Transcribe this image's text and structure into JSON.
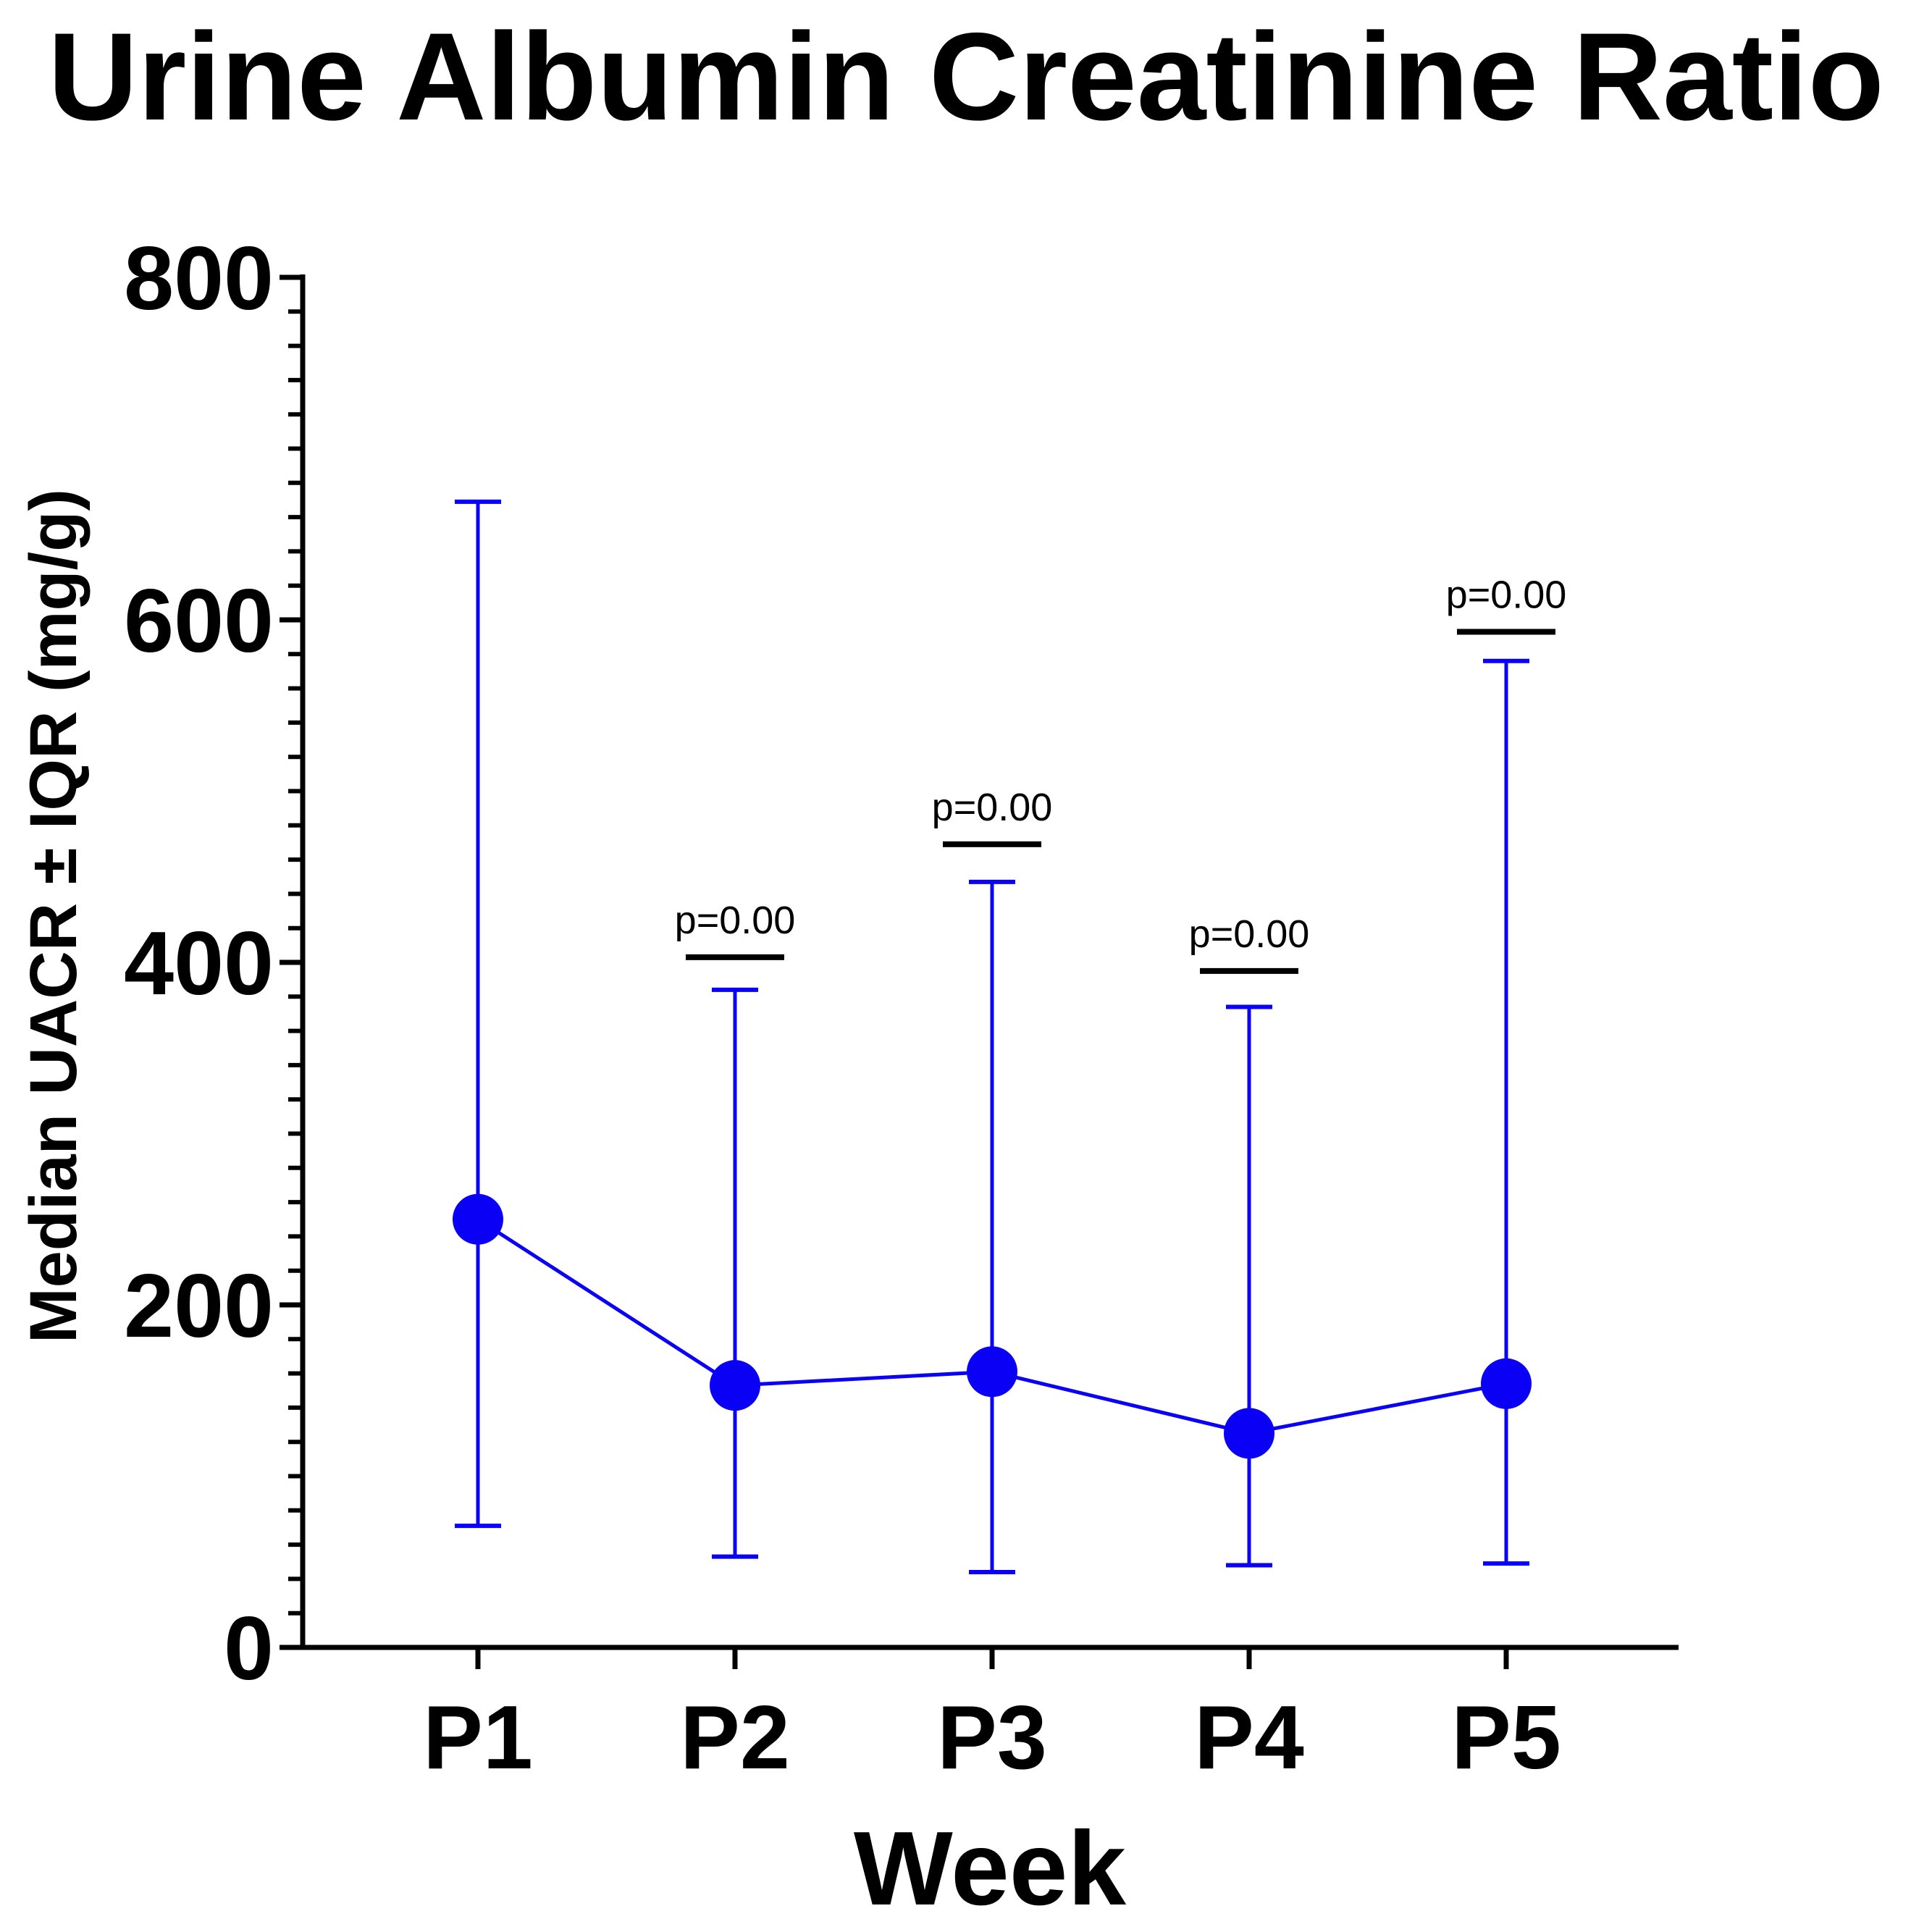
{
  "chart_data": {
    "type": "line",
    "title": "Urine Albumin Creatinine Ratio",
    "xlabel": "Week",
    "ylabel": "Median UACR ± IQR (mg/g)",
    "categories": [
      "P1",
      "P2",
      "P3",
      "P4",
      "P5"
    ],
    "ylim": [
      0,
      800
    ],
    "yticks": [
      0,
      200,
      400,
      600,
      800
    ],
    "yticks_labels": [
      "0",
      "200",
      "400",
      "600",
      "800"
    ],
    "minor_tick_step": 20,
    "grid": false,
    "series": [
      {
        "median": [
          250,
          153,
          161,
          125,
          154
        ],
        "q_low": [
          71,
          53,
          44,
          48,
          49
        ],
        "q_high": [
          669,
          384,
          447,
          374,
          576
        ]
      }
    ],
    "annotations": [
      {
        "category": "P2",
        "text": "p=0.00",
        "y": 403
      },
      {
        "category": "P3",
        "text": "p=0.00",
        "y": 469
      },
      {
        "category": "P4",
        "text": "p=0.00",
        "y": 395
      },
      {
        "category": "P5",
        "text": "p=0.00",
        "y": 593
      }
    ],
    "colors": {
      "series": "#0a00f5",
      "axis": "#000000"
    }
  }
}
